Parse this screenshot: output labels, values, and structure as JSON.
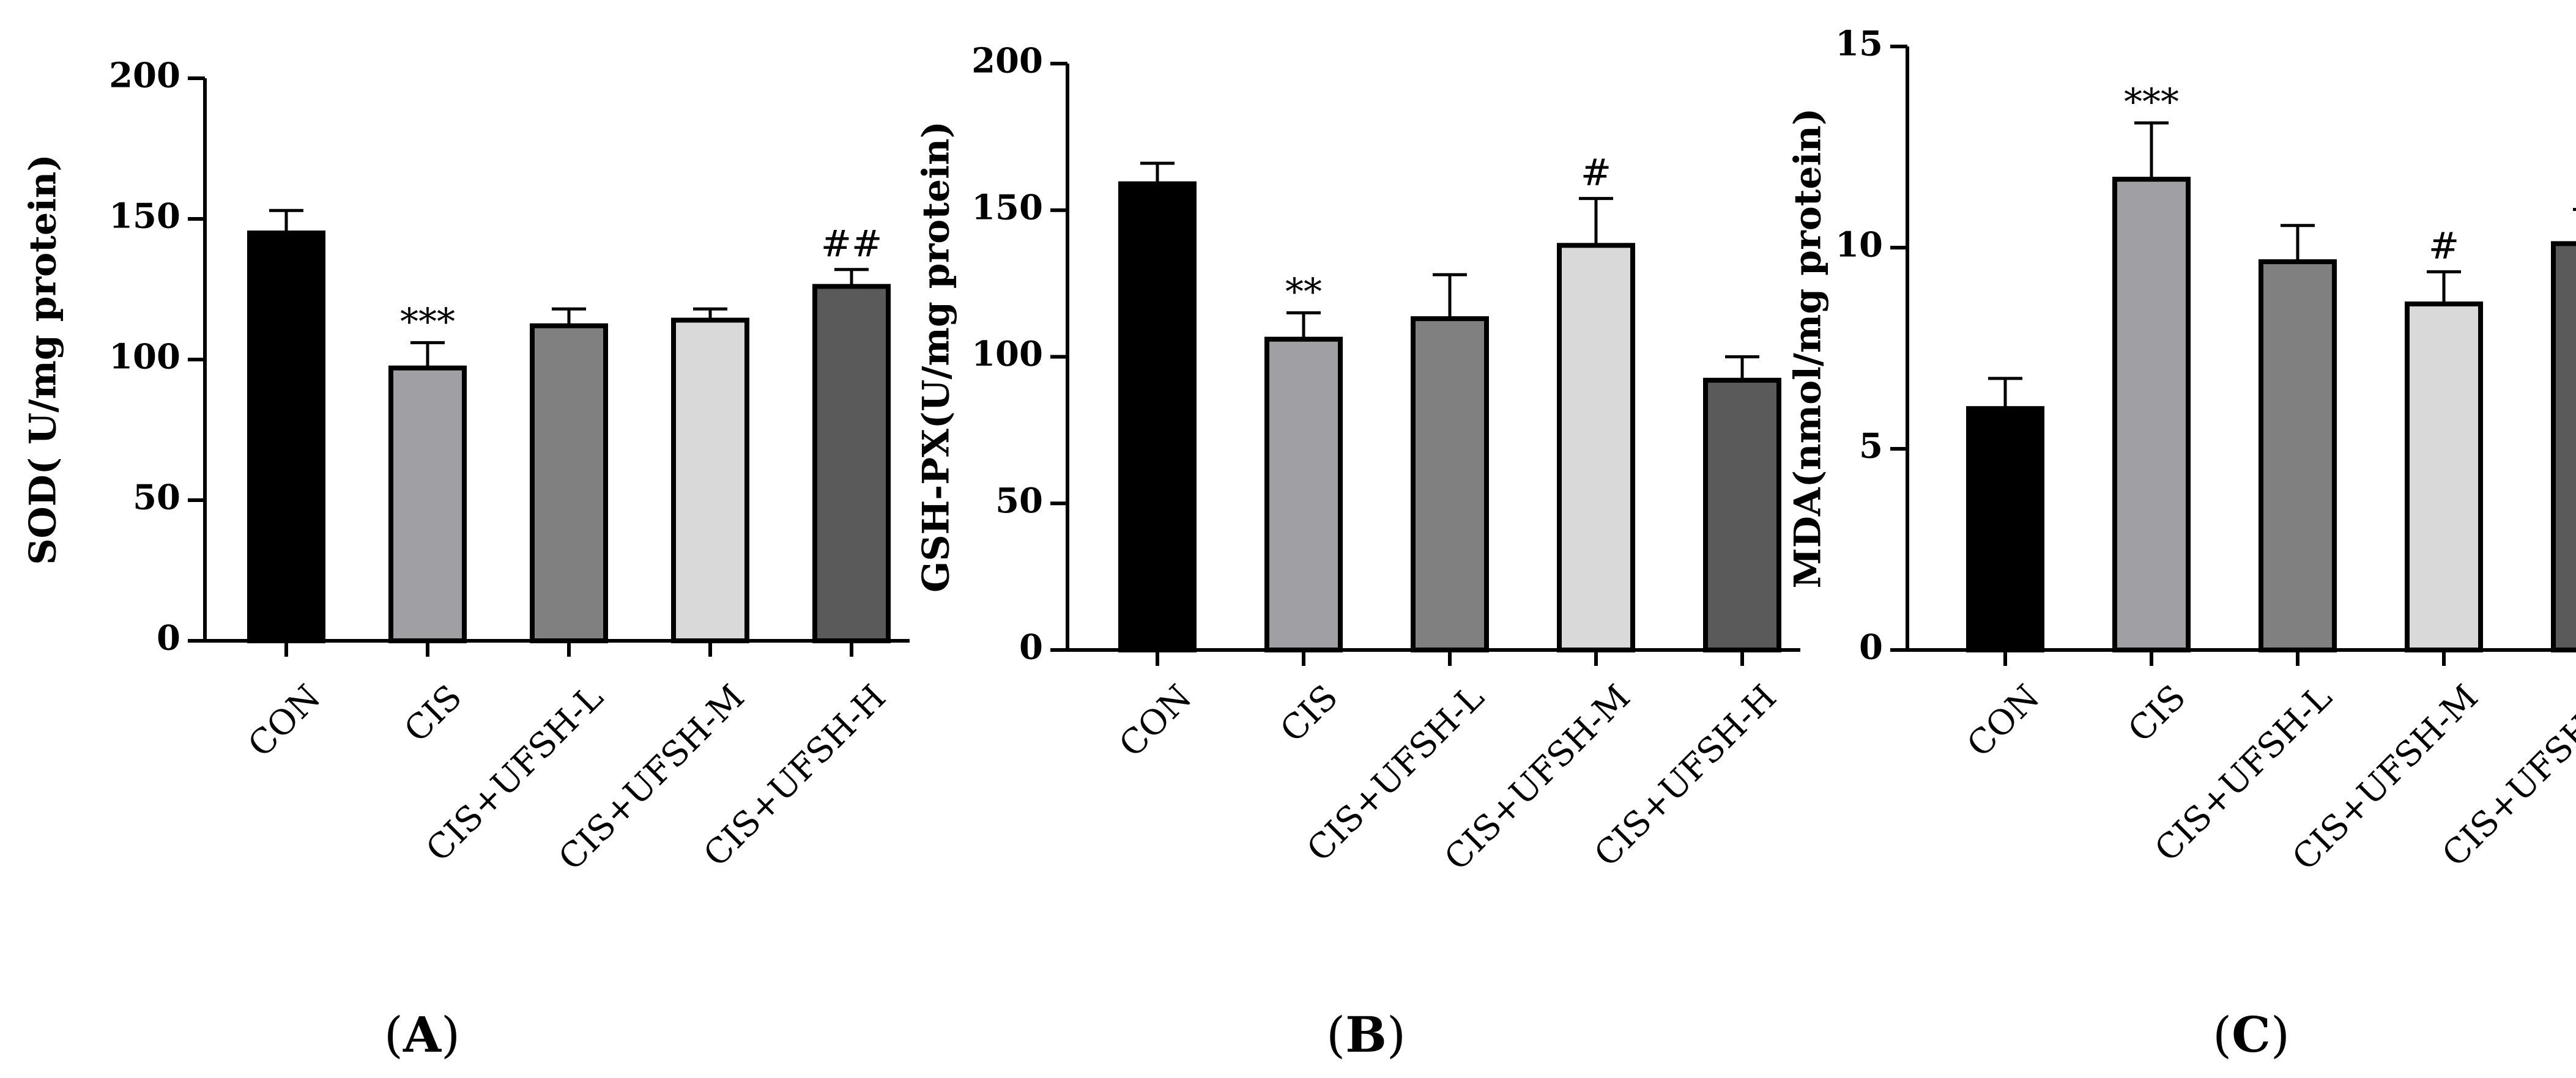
{
  "chart_data": [
    {
      "type": "bar",
      "panel_label": "(A)",
      "panel_letter": "A",
      "title": "",
      "xlabel": "",
      "ylabel": "SOD( U/mg protein)",
      "ylim": [
        0,
        200
      ],
      "yticks": [
        0,
        50,
        100,
        150,
        200
      ],
      "categories": [
        "CON",
        "CIS",
        "CIS+UFSH-L",
        "CIS+UFSH-M",
        "CIS+UFSH-H"
      ],
      "values": [
        145,
        97,
        112,
        114,
        126
      ],
      "errors": [
        8,
        9,
        6,
        4,
        6
      ],
      "annotations": [
        "",
        "***",
        "",
        "",
        "##"
      ],
      "bar_colors": [
        "#000000",
        "#a0a0a4",
        "#808080",
        "#d9d9d9",
        "#5a5a5a"
      ]
    },
    {
      "type": "bar",
      "panel_label": "(B)",
      "panel_letter": "B",
      "title": "",
      "xlabel": "",
      "ylabel": "GSH-PX(U/mg protein)",
      "ylim": [
        0,
        200
      ],
      "yticks": [
        0,
        50,
        100,
        150,
        200
      ],
      "categories": [
        "CON",
        "CIS",
        "CIS+UFSH-L",
        "CIS+UFSH-M",
        "CIS+UFSH-H"
      ],
      "values": [
        159,
        106,
        113,
        138,
        92
      ],
      "errors": [
        7,
        9,
        15,
        16,
        8
      ],
      "annotations": [
        "",
        "**",
        "",
        "#",
        ""
      ],
      "bar_colors": [
        "#000000",
        "#a0a0a4",
        "#808080",
        "#d9d9d9",
        "#5a5a5a"
      ]
    },
    {
      "type": "bar",
      "panel_label": "(C)",
      "panel_letter": "C",
      "title": "",
      "xlabel": "",
      "ylabel": "MDA(nmol/mg protein)",
      "ylim": [
        0,
        15
      ],
      "yticks": [
        0,
        5,
        10,
        15
      ],
      "categories": [
        "CON",
        "CIS",
        "CIS+UFSH-L",
        "CIS+UFSH-M",
        "CIS+UFSH-H"
      ],
      "values": [
        6.0,
        11.7,
        9.65,
        8.6,
        10.1
      ],
      "errors": [
        0.75,
        1.4,
        0.9,
        0.8,
        0.85
      ],
      "annotations": [
        "",
        "***",
        "",
        "#",
        ""
      ],
      "bar_colors": [
        "#000000",
        "#a0a0a4",
        "#808080",
        "#d9d9d9",
        "#5a5a5a"
      ]
    }
  ]
}
